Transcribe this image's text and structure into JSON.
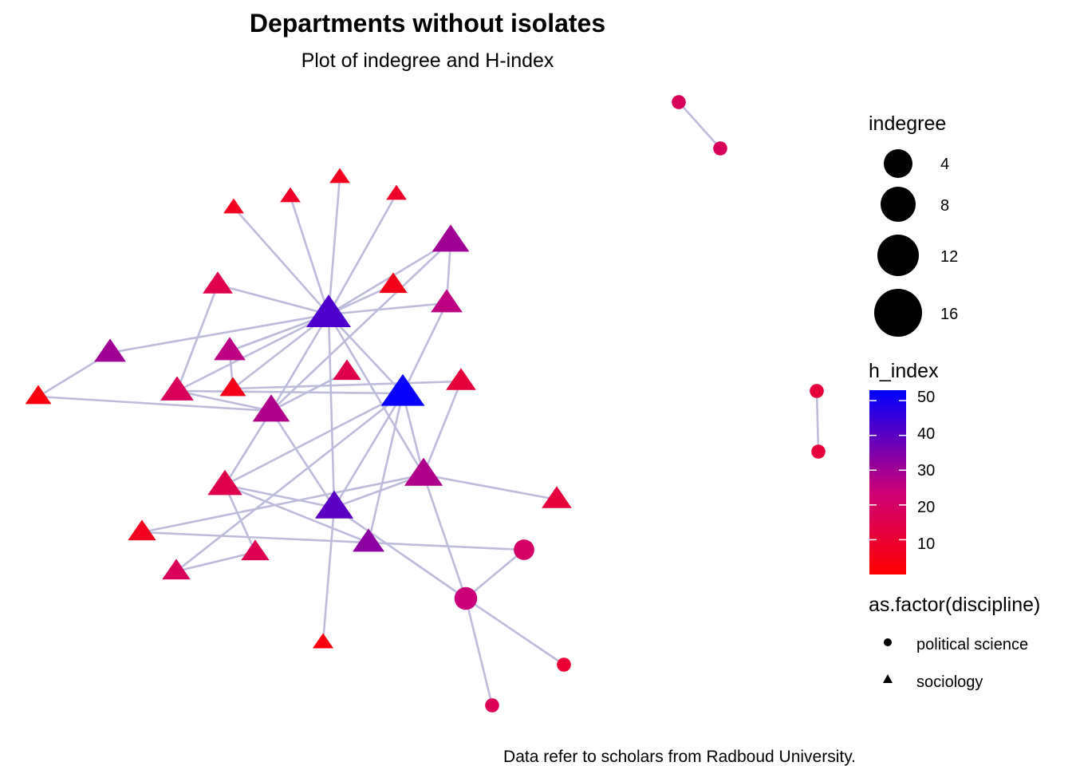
{
  "title": "Departments without isolates",
  "subtitle": "Plot of indegree and H-index",
  "caption": "Data refer to scholars from Radboud University.",
  "colors": {
    "edge": "#bdbcdb",
    "low": "#ff0000",
    "mid": "#cc0077",
    "high": "#0000ff"
  },
  "legends": {
    "size": {
      "title": "indegree",
      "entries": [
        {
          "label": "4",
          "value": 4
        },
        {
          "label": "8",
          "value": 8
        },
        {
          "label": "12",
          "value": 12
        },
        {
          "label": "16",
          "value": 16
        }
      ]
    },
    "color": {
      "title": "h_index",
      "range": [
        0,
        53
      ],
      "ticks": [
        {
          "label": "50",
          "value": 50
        },
        {
          "label": "40",
          "value": 40
        },
        {
          "label": "30",
          "value": 30
        },
        {
          "label": "20",
          "value": 20
        },
        {
          "label": "10",
          "value": 10
        }
      ]
    },
    "shape": {
      "title": "as.factor(discipline)",
      "entries": [
        {
          "label": "political science",
          "shape": "circle"
        },
        {
          "label": "sociology",
          "shape": "triangle"
        }
      ]
    }
  },
  "network": {
    "nodes": [
      {
        "id": "n1",
        "discipline": "political science",
        "indegree": 1,
        "h_index": 18
      },
      {
        "id": "n2",
        "discipline": "political science",
        "indegree": 1,
        "h_index": 18
      },
      {
        "id": "n3",
        "discipline": "political science",
        "indegree": 1,
        "h_index": 12
      },
      {
        "id": "n4",
        "discipline": "political science",
        "indegree": 1,
        "h_index": 12
      },
      {
        "id": "n5",
        "discipline": "sociology",
        "indegree": 1,
        "h_index": 6
      },
      {
        "id": "n6",
        "discipline": "sociology",
        "indegree": 1,
        "h_index": 8
      },
      {
        "id": "n7",
        "discipline": "sociology",
        "indegree": 1,
        "h_index": 6
      },
      {
        "id": "n8",
        "discipline": "sociology",
        "indegree": 1,
        "h_index": 8
      },
      {
        "id": "n9",
        "discipline": "sociology",
        "indegree": 3,
        "h_index": 3
      },
      {
        "id": "n10",
        "discipline": "sociology",
        "indegree": 5,
        "h_index": 15
      },
      {
        "id": "n11",
        "discipline": "sociology",
        "indegree": 6,
        "h_index": 30
      },
      {
        "id": "n12",
        "discipline": "sociology",
        "indegree": 6,
        "h_index": 26
      },
      {
        "id": "n13",
        "discipline": "sociology",
        "indegree": 17,
        "h_index": 42
      },
      {
        "id": "n14",
        "discipline": "sociology",
        "indegree": 4,
        "h_index": 15
      },
      {
        "id": "n15",
        "discipline": "sociology",
        "indegree": 7,
        "h_index": 18
      },
      {
        "id": "n16",
        "discipline": "sociology",
        "indegree": 3,
        "h_index": 5
      },
      {
        "id": "n17",
        "discipline": "sociology",
        "indegree": 4,
        "h_index": 5
      },
      {
        "id": "n18",
        "discipline": "sociology",
        "indegree": 1,
        "h_index": 4
      },
      {
        "id": "n19",
        "discipline": "sociology",
        "indegree": 10,
        "h_index": 28
      },
      {
        "id": "n20",
        "discipline": "sociology",
        "indegree": 10,
        "h_index": 30
      },
      {
        "id": "n21",
        "discipline": "sociology",
        "indegree": 6,
        "h_index": 26
      },
      {
        "id": "n22",
        "discipline": "sociology",
        "indegree": 5,
        "h_index": 12
      },
      {
        "id": "n23",
        "discipline": "sociology",
        "indegree": 16,
        "h_index": 52
      },
      {
        "id": "n24",
        "discipline": "sociology",
        "indegree": 8,
        "h_index": 15
      },
      {
        "id": "n25",
        "discipline": "sociology",
        "indegree": 11,
        "h_index": 28
      },
      {
        "id": "n26",
        "discipline": "sociology",
        "indegree": 11,
        "h_index": 40
      },
      {
        "id": "n27",
        "discipline": "sociology",
        "indegree": 4,
        "h_index": 6
      },
      {
        "id": "n28",
        "discipline": "political science",
        "indegree": 5,
        "h_index": 20
      },
      {
        "id": "n29",
        "discipline": "sociology",
        "indegree": 4,
        "h_index": 18
      },
      {
        "id": "n30",
        "discipline": "sociology",
        "indegree": 4,
        "h_index": 16
      },
      {
        "id": "n31",
        "discipline": "sociology",
        "indegree": 6,
        "h_index": 33
      },
      {
        "id": "n32",
        "discipline": "sociology",
        "indegree": 5,
        "h_index": 12
      },
      {
        "id": "n33",
        "discipline": "political science",
        "indegree": 7,
        "h_index": 24
      },
      {
        "id": "n34",
        "discipline": "sociology",
        "indegree": 1,
        "h_index": 3
      },
      {
        "id": "n35",
        "discipline": "political science",
        "indegree": 1,
        "h_index": 17
      },
      {
        "id": "n36",
        "discipline": "political science",
        "indegree": 1,
        "h_index": 10
      }
    ],
    "edges": [
      [
        "n1",
        "n2"
      ],
      [
        "n3",
        "n4"
      ],
      [
        "n13",
        "n5"
      ],
      [
        "n13",
        "n6"
      ],
      [
        "n13",
        "n7"
      ],
      [
        "n13",
        "n8"
      ],
      [
        "n13",
        "n10"
      ],
      [
        "n13",
        "n11"
      ],
      [
        "n13",
        "n12"
      ],
      [
        "n13",
        "n15"
      ],
      [
        "n13",
        "n16"
      ],
      [
        "n13",
        "n17"
      ],
      [
        "n13",
        "n19"
      ],
      [
        "n13",
        "n20"
      ],
      [
        "n13",
        "n21"
      ],
      [
        "n13",
        "n23"
      ],
      [
        "n13",
        "n26"
      ],
      [
        "n13",
        "n25"
      ],
      [
        "n11",
        "n9"
      ],
      [
        "n12",
        "n13"
      ],
      [
        "n10",
        "n15"
      ],
      [
        "n15",
        "n19"
      ],
      [
        "n15",
        "n23"
      ],
      [
        "n14",
        "n19"
      ],
      [
        "n19",
        "n20"
      ],
      [
        "n9",
        "n19"
      ],
      [
        "n19",
        "n26"
      ],
      [
        "n19",
        "n24"
      ],
      [
        "n20",
        "n21"
      ],
      [
        "n21",
        "n23"
      ],
      [
        "n23",
        "n24"
      ],
      [
        "n23",
        "n25"
      ],
      [
        "n23",
        "n26"
      ],
      [
        "n23",
        "n29"
      ],
      [
        "n23",
        "n31"
      ],
      [
        "n24",
        "n26"
      ],
      [
        "n24",
        "n30"
      ],
      [
        "n24",
        "n31"
      ],
      [
        "n26",
        "n25"
      ],
      [
        "n26",
        "n34"
      ],
      [
        "n26",
        "n33"
      ],
      [
        "n25",
        "n22"
      ],
      [
        "n25",
        "n27"
      ],
      [
        "n25",
        "n32"
      ],
      [
        "n25",
        "n33"
      ],
      [
        "n12",
        "n16"
      ],
      [
        "n16",
        "n22"
      ],
      [
        "n27",
        "n28"
      ],
      [
        "n28",
        "n33"
      ],
      [
        "n33",
        "n36"
      ],
      [
        "n33",
        "n35"
      ],
      [
        "n29",
        "n30"
      ]
    ]
  }
}
